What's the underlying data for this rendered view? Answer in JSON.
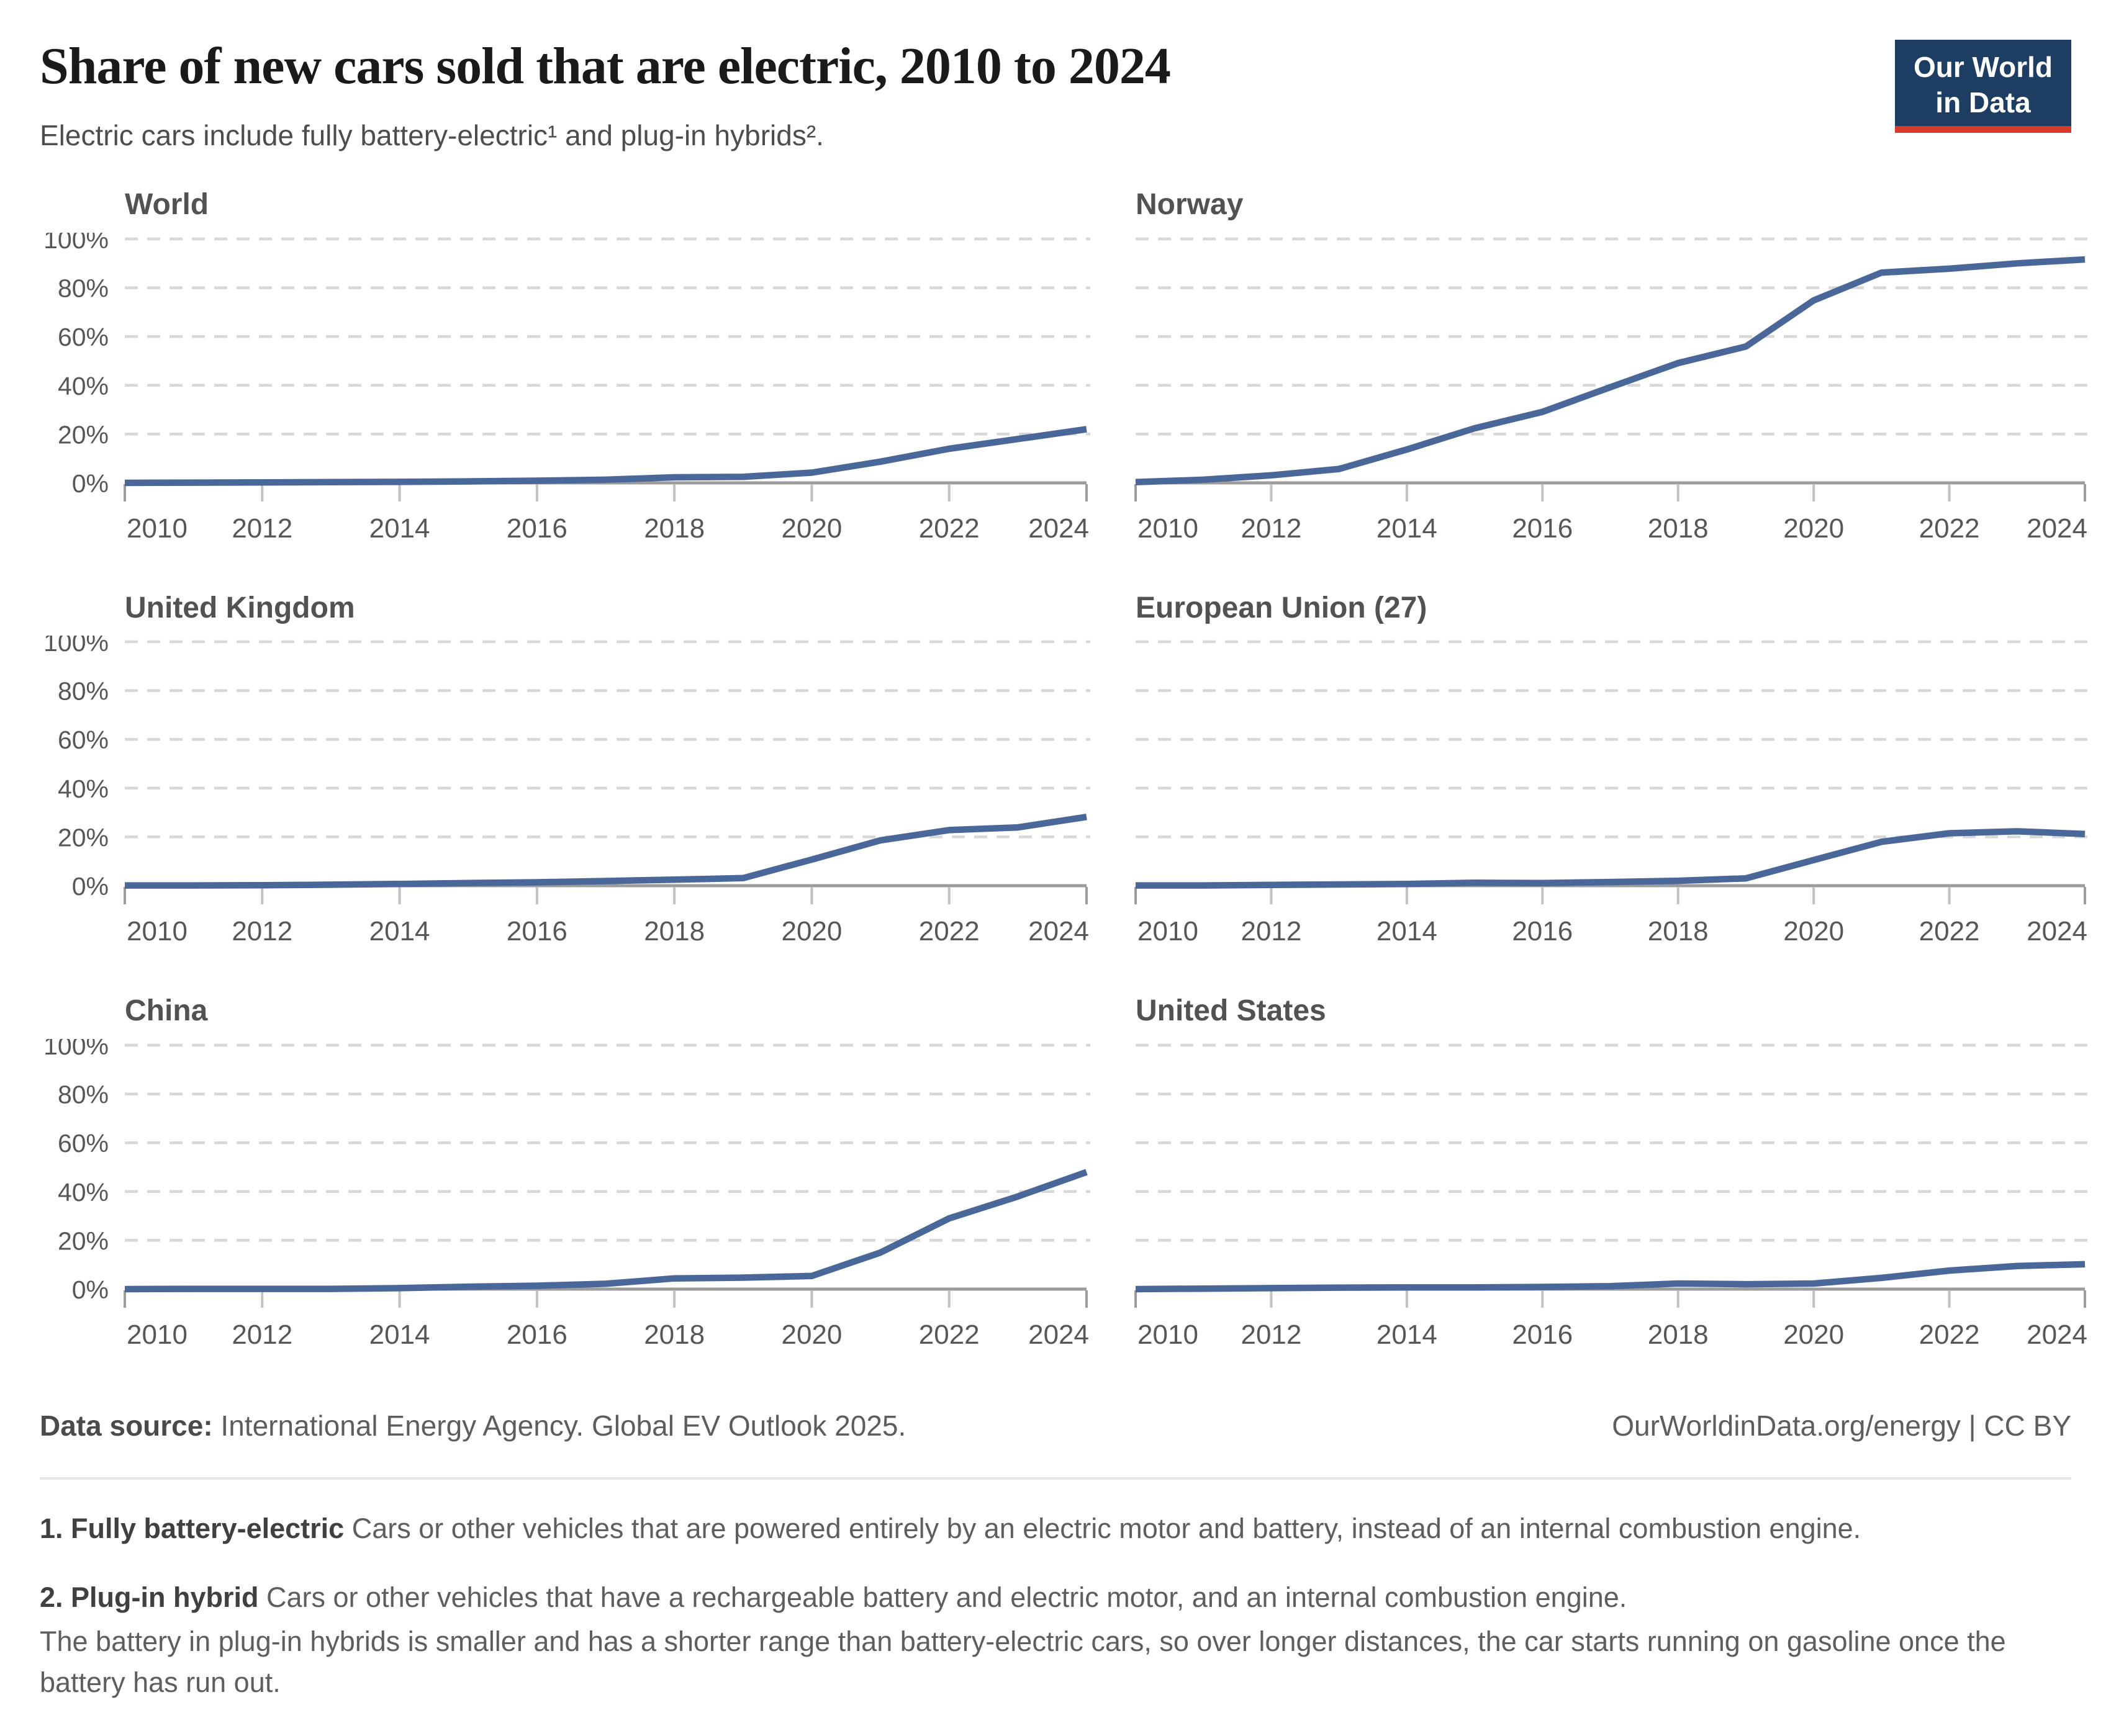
{
  "header": {
    "title": "Share of new cars sold that are electric, 2010 to 2024",
    "subtitle": "Electric cars include fully battery-electric¹ and plug-in hybrids²."
  },
  "logo": {
    "line1": "Our World",
    "line2": "in Data",
    "bg_color": "#1d3d63",
    "accent_color": "#d93a2b"
  },
  "chart_style": {
    "line_color": "#4a679a",
    "grid_color": "#d8d8d8",
    "axis_color": "#9c9c9c",
    "tick_color": "#c2c2c2",
    "label_color": "#575757",
    "xlim": [
      2010,
      2024
    ],
    "ylim": [
      0,
      100
    ],
    "xticks": [
      2010,
      2012,
      2014,
      2016,
      2018,
      2020,
      2022,
      2024
    ],
    "yticks": [
      0,
      20,
      40,
      60,
      80,
      100
    ],
    "ytick_suffix": "%",
    "grid": "horizontal-dashed",
    "legend": "none"
  },
  "chart_data": [
    {
      "type": "line",
      "title": "World",
      "y_labels_visible": true,
      "x": [
        2010,
        2011,
        2012,
        2013,
        2014,
        2015,
        2016,
        2017,
        2018,
        2019,
        2020,
        2021,
        2022,
        2023,
        2024
      ],
      "values": [
        0.0,
        0.1,
        0.2,
        0.3,
        0.4,
        0.6,
        0.9,
        1.3,
        2.3,
        2.5,
        4.2,
        8.7,
        14.0,
        18.0,
        22.0
      ]
    },
    {
      "type": "line",
      "title": "Norway",
      "y_labels_visible": false,
      "x": [
        2010,
        2011,
        2012,
        2013,
        2014,
        2015,
        2016,
        2017,
        2018,
        2019,
        2020,
        2021,
        2022,
        2023,
        2024
      ],
      "values": [
        0.3,
        1.3,
        3.1,
        5.7,
        13.7,
        22.4,
        29.1,
        39.2,
        49.1,
        55.9,
        74.8,
        86.2,
        87.8,
        90.0,
        91.6
      ]
    },
    {
      "type": "line",
      "title": "United Kingdom",
      "y_labels_visible": true,
      "x": [
        2010,
        2011,
        2012,
        2013,
        2014,
        2015,
        2016,
        2017,
        2018,
        2019,
        2020,
        2021,
        2022,
        2023,
        2024
      ],
      "values": [
        0.1,
        0.1,
        0.2,
        0.4,
        0.7,
        1.1,
        1.4,
        1.9,
        2.5,
        3.1,
        10.7,
        18.6,
        22.8,
        23.9,
        28.2
      ]
    },
    {
      "type": "line",
      "title": "European Union (27)",
      "y_labels_visible": false,
      "x": [
        2010,
        2011,
        2012,
        2013,
        2014,
        2015,
        2016,
        2017,
        2018,
        2019,
        2020,
        2021,
        2022,
        2023,
        2024
      ],
      "values": [
        0.1,
        0.1,
        0.3,
        0.5,
        0.7,
        1.2,
        1.1,
        1.5,
        2.0,
        3.0,
        10.5,
        18.0,
        21.5,
        22.3,
        21.2
      ]
    },
    {
      "type": "line",
      "title": "China",
      "y_labels_visible": true,
      "x": [
        2010,
        2011,
        2012,
        2013,
        2014,
        2015,
        2016,
        2017,
        2018,
        2019,
        2020,
        2021,
        2022,
        2023,
        2024
      ],
      "values": [
        0.0,
        0.1,
        0.1,
        0.1,
        0.4,
        1.0,
        1.4,
        2.2,
        4.4,
        4.7,
        5.4,
        15.0,
        29.0,
        38.0,
        48.0
      ]
    },
    {
      "type": "line",
      "title": "United States",
      "y_labels_visible": false,
      "x": [
        2010,
        2011,
        2012,
        2013,
        2014,
        2015,
        2016,
        2017,
        2018,
        2019,
        2020,
        2021,
        2022,
        2023,
        2024
      ],
      "values": [
        0.0,
        0.2,
        0.4,
        0.6,
        0.7,
        0.7,
        0.9,
        1.2,
        2.3,
        2.0,
        2.3,
        4.6,
        7.6,
        9.5,
        10.2
      ]
    }
  ],
  "footer": {
    "source_label": "Data source:",
    "source_text": " International Energy Agency. Global EV Outlook 2025.",
    "link_text": "OurWorldinData.org/energy | CC BY"
  },
  "footnotes": [
    {
      "label": "1. Fully battery-electric",
      "text": " Cars or other vehicles that are powered entirely by an electric motor and battery, instead of an internal combustion engine."
    },
    {
      "label": "2. Plug-in hybrid",
      "text": " Cars or other vehicles that have a rechargeable battery and electric motor, and an internal combustion engine.",
      "text2": "The battery in plug-in hybrids is smaller and has a shorter range than battery-electric cars, so over longer distances, the car starts running on gasoline once the battery has run out."
    }
  ]
}
